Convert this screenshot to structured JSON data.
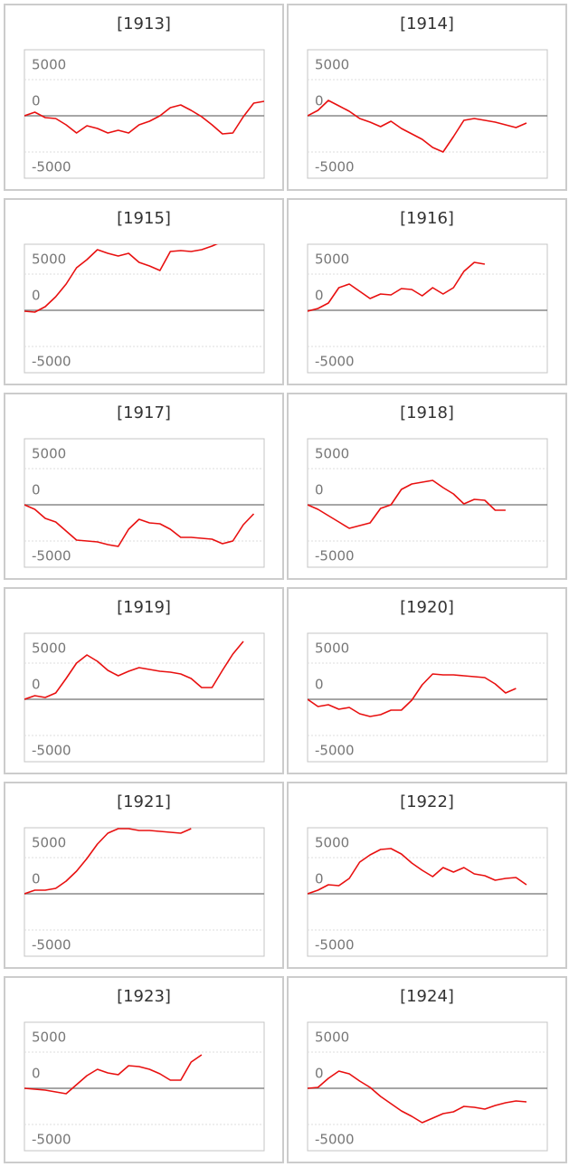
{
  "chart_data": [
    {
      "type": "line",
      "title": "[1913]",
      "color": "#e81010",
      "ylim": [
        -8625,
        9125
      ],
      "yticks": [
        -5000,
        0,
        5000
      ],
      "grid": true,
      "values": [
        0,
        500,
        -250,
        -375,
        -1250,
        -2375,
        -1375,
        -1750,
        -2375,
        -2000,
        -2375,
        -1250,
        -750,
        0,
        1125,
        1500,
        750,
        -125,
        -1250,
        -2500,
        -2375,
        -125,
        1750,
        2000
      ]
    },
    {
      "type": "line",
      "title": "[1914]",
      "color": "#e81010",
      "ylim": [
        -8625,
        9125
      ],
      "yticks": [
        -5000,
        0,
        5000
      ],
      "grid": true,
      "values": [
        0,
        750,
        2125,
        1375,
        625,
        -375,
        -875,
        -1500,
        -750,
        -1750,
        -2500,
        -3250,
        -4375,
        -5000,
        -2875,
        -625,
        -375,
        -625,
        -875,
        -1250,
        -1625,
        -1000,
        null,
        null
      ]
    },
    {
      "type": "line",
      "title": "[1915]",
      "color": "#e81010",
      "ylim": [
        -8625,
        9125
      ],
      "yticks": [
        -5000,
        0,
        5000
      ],
      "grid": true,
      "values": [
        -125,
        -250,
        500,
        1875,
        3625,
        5875,
        7000,
        8375,
        7875,
        7500,
        7875,
        6625,
        6125,
        5500,
        8125,
        8250,
        8125,
        8375,
        8875,
        9500,
        9500,
        null,
        null,
        null
      ]
    },
    {
      "type": "line",
      "title": "[1916]",
      "color": "#e81010",
      "ylim": [
        -8625,
        9125
      ],
      "yticks": [
        -5000,
        0,
        5000
      ],
      "grid": true,
      "values": [
        -125,
        250,
        1000,
        3125,
        3625,
        2625,
        1625,
        2250,
        2125,
        3000,
        2875,
        2000,
        3125,
        2250,
        3125,
        5375,
        6625,
        6375,
        null,
        null,
        null,
        null,
        null,
        null
      ]
    },
    {
      "type": "line",
      "title": "[1917]",
      "color": "#e81010",
      "ylim": [
        -8625,
        9125
      ],
      "yticks": [
        -5000,
        0,
        5000
      ],
      "grid": true,
      "values": [
        0,
        -625,
        -1875,
        -2375,
        -3625,
        -4875,
        -5000,
        -5125,
        -5500,
        -5750,
        -3375,
        -2000,
        -2500,
        -2625,
        -3375,
        -4500,
        -4500,
        -4625,
        -4750,
        -5375,
        -5000,
        -2750,
        -1250,
        null
      ]
    },
    {
      "type": "line",
      "title": "[1918]",
      "color": "#e81010",
      "ylim": [
        -8625,
        9125
      ],
      "yticks": [
        -5000,
        0,
        5000
      ],
      "grid": true,
      "values": [
        0,
        -625,
        -1500,
        -2375,
        -3250,
        -2875,
        -2500,
        -500,
        0,
        2125,
        2875,
        3125,
        3375,
        2375,
        1500,
        125,
        750,
        625,
        -750,
        -750,
        null,
        null,
        null,
        null
      ]
    },
    {
      "type": "line",
      "title": "[1919]",
      "color": "#e81010",
      "ylim": [
        -8625,
        9125
      ],
      "yticks": [
        -5000,
        0,
        5000
      ],
      "grid": true,
      "values": [
        0,
        500,
        250,
        875,
        2875,
        5000,
        6125,
        5250,
        4000,
        3250,
        3875,
        4375,
        4125,
        3875,
        3750,
        3500,
        2875,
        1625,
        1625,
        4000,
        6250,
        8000,
        null,
        null
      ]
    },
    {
      "type": "line",
      "title": "[1920]",
      "color": "#e81010",
      "ylim": [
        -8625,
        9125
      ],
      "yticks": [
        -5000,
        0,
        5000
      ],
      "grid": true,
      "values": [
        0,
        -1000,
        -750,
        -1375,
        -1125,
        -2000,
        -2375,
        -2125,
        -1500,
        -1500,
        -125,
        2000,
        3500,
        3375,
        3375,
        3250,
        3125,
        3000,
        2125,
        875,
        1500,
        null,
        null,
        null
      ]
    },
    {
      "type": "line",
      "title": "[1921]",
      "color": "#e81010",
      "ylim": [
        -8625,
        9125
      ],
      "yticks": [
        -5000,
        0,
        5000
      ],
      "grid": true,
      "values": [
        0,
        500,
        500,
        750,
        1750,
        3125,
        4875,
        6875,
        8375,
        9000,
        9000,
        8750,
        8750,
        8625,
        8500,
        8375,
        9000,
        null,
        null,
        null,
        null,
        null,
        null,
        null
      ]
    },
    {
      "type": "line",
      "title": "[1922]",
      "color": "#e81010",
      "ylim": [
        -8625,
        9125
      ],
      "yticks": [
        -5000,
        0,
        5000
      ],
      "grid": true,
      "values": [
        0,
        500,
        1250,
        1125,
        2125,
        4375,
        5375,
        6125,
        6250,
        5500,
        4250,
        3250,
        2375,
        3625,
        3000,
        3625,
        2750,
        2500,
        1875,
        2125,
        2250,
        1250,
        null,
        null
      ]
    },
    {
      "type": "line",
      "title": "[1923]",
      "color": "#e81010",
      "ylim": [
        -8625,
        9125
      ],
      "yticks": [
        -5000,
        0,
        5000
      ],
      "grid": true,
      "values": [
        0,
        -125,
        -250,
        -500,
        -750,
        500,
        1750,
        2625,
        2125,
        1875,
        3125,
        3000,
        2625,
        2000,
        1125,
        1125,
        3625,
        4625,
        null,
        null,
        null,
        null,
        null,
        null
      ]
    },
    {
      "type": "line",
      "title": "[1924]",
      "color": "#e81010",
      "ylim": [
        -8625,
        9125
      ],
      "yticks": [
        -5000,
        0,
        5000
      ],
      "grid": true,
      "values": [
        0,
        125,
        1375,
        2375,
        2000,
        1000,
        125,
        -1125,
        -2125,
        -3125,
        -3875,
        -4750,
        -4125,
        -3500,
        -3250,
        -2500,
        -2625,
        -2875,
        -2375,
        -2000,
        -1750,
        -1875,
        null,
        null
      ]
    }
  ]
}
